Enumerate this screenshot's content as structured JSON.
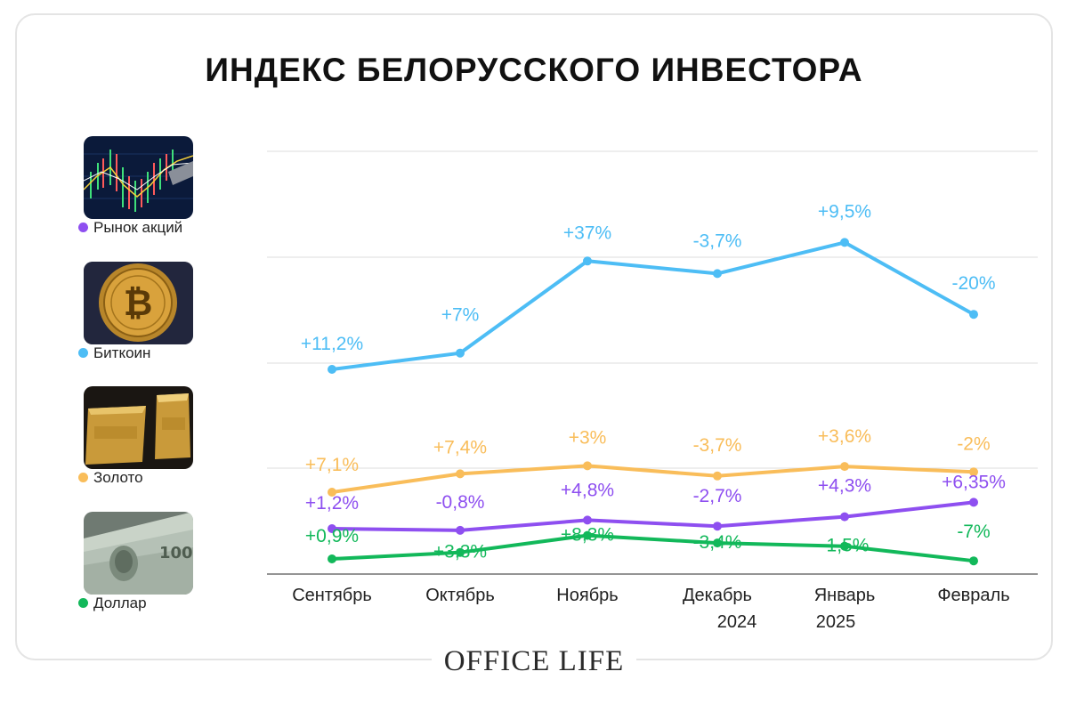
{
  "title": "ИНДЕКС БЕЛОРУССКОГО ИНВЕСТОРА",
  "brand": "OFFICE LIFE",
  "legend": [
    {
      "label": "Рынок акций",
      "color": "#8e4ff0",
      "icon": "stock-chart-image"
    },
    {
      "label": "Биткоин",
      "color": "#4dbdf5",
      "icon": "bitcoin-image"
    },
    {
      "label": "Золото",
      "color": "#f9bd5a",
      "icon": "gold-bars-image"
    },
    {
      "label": "Доллар",
      "color": "#12b85a",
      "icon": "dollar-bills-image"
    }
  ],
  "chart_data": {
    "type": "line",
    "categories": [
      "Сентябрь",
      "Октябрь",
      "Ноябрь",
      "Декабрь",
      "Январь",
      "Февраль"
    ],
    "year_labels": [
      {
        "category": "Декабрь",
        "text": "2024"
      },
      {
        "category": "Январь",
        "text": "2025"
      }
    ],
    "grid": true,
    "series": [
      {
        "name": "Биткоин",
        "color": "#4dbdf5",
        "values": [
          11.2,
          7,
          37,
          -3.7,
          9.5,
          -20
        ],
        "labels": [
          "+11,2%",
          "+7%",
          "+37%",
          "-3,7%",
          "+9,5%",
          "-20%"
        ]
      },
      {
        "name": "Золото",
        "color": "#f9bd5a",
        "values": [
          7.1,
          7.4,
          3,
          -3.7,
          3.6,
          -2
        ],
        "labels": [
          "+7,1%",
          "+7,4%",
          "+3%",
          "-3,7%",
          "+3,6%",
          "-2%"
        ]
      },
      {
        "name": "Рынок акций",
        "color": "#8e4ff0",
        "values": [
          1.2,
          -0.8,
          4.8,
          -2.7,
          4.3,
          6.35
        ],
        "labels": [
          "+1,2%",
          "-0,8%",
          "+4,8%",
          "-2,7%",
          "+4,3%",
          "+6,35%"
        ]
      },
      {
        "name": "Доллар",
        "color": "#12b85a",
        "values": [
          0.9,
          3.3,
          8.3,
          -3.4,
          -1.5,
          -7
        ],
        "labels": [
          "+0,9%",
          "+3,3%",
          "+8,3%",
          "-3,4%",
          "-1,5%",
          "-7%"
        ]
      }
    ],
    "note": "Labels show monthly % change; line height shows cumulative index level (no value axis printed)."
  }
}
